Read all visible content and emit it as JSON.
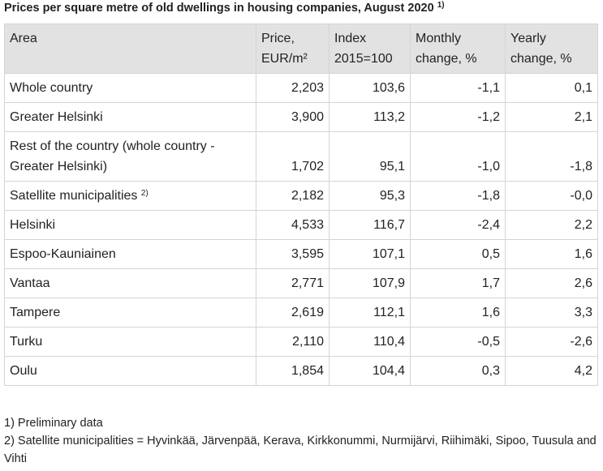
{
  "title": "Prices per square metre of old dwellings in housing companies, August 2020",
  "title_note": "1)",
  "table": {
    "headers": [
      "Area",
      "Price, EUR/m²",
      "Index 2015=100",
      "Monthly change, %",
      "Yearly change, %"
    ],
    "rows": [
      {
        "area": "Whole country",
        "values": [
          "2,203",
          "103,6",
          "-1,1",
          "0,1"
        ]
      },
      {
        "area": "Greater Helsinki",
        "values": [
          "3,900",
          "113,2",
          "-1,2",
          "2,1"
        ]
      },
      {
        "area": "Rest of the country (whole country - Greater Helsinki)",
        "values": [
          "1,702",
          "95,1",
          "-1,0",
          "-1,8"
        ]
      },
      {
        "area": "Satellite municipalities",
        "note": "2)",
        "values": [
          "2,182",
          "95,3",
          "-1,8",
          "-0,0"
        ]
      },
      {
        "area": "Helsinki",
        "values": [
          "4,533",
          "116,7",
          "-2,4",
          "2,2"
        ]
      },
      {
        "area": "Espoo-Kauniainen",
        "values": [
          "3,595",
          "107,1",
          "0,5",
          "1,6"
        ]
      },
      {
        "area": "Vantaa",
        "values": [
          "2,771",
          "107,9",
          "1,7",
          "2,6"
        ]
      },
      {
        "area": "Tampere",
        "values": [
          "2,619",
          "112,1",
          "1,6",
          "3,3"
        ]
      },
      {
        "area": "Turku",
        "values": [
          "2,110",
          "110,4",
          "-0,5",
          "-2,6"
        ]
      },
      {
        "area": "Oulu",
        "values": [
          "1,854",
          "104,4",
          "0,3",
          "4,2"
        ]
      }
    ]
  },
  "footnotes": [
    "1) Preliminary data",
    "2) Satellite municipalities = Hyvinkää, Järvenpää, Kerava, Kirkkonummi, Nurmijärvi, Riihimäki, Sipoo, Tuusula and Vihti"
  ]
}
